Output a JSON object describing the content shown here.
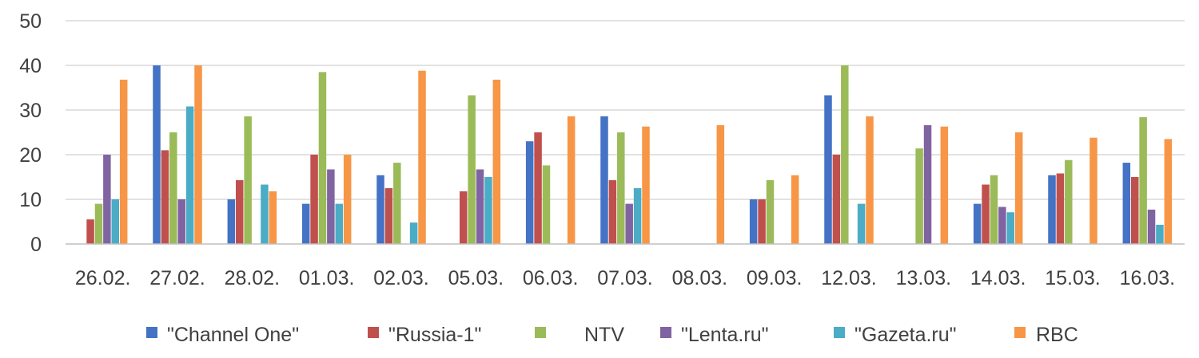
{
  "chart_data": {
    "type": "bar",
    "title": "",
    "xlabel": "",
    "ylabel": "",
    "ylim": [
      0,
      50
    ],
    "yticks": [
      0,
      10,
      20,
      30,
      40,
      50
    ],
    "grid": true,
    "legend_position": "bottom",
    "categories": [
      "26.02.",
      "27.02.",
      "28.02.",
      "01.03.",
      "02.03.",
      "05.03.",
      "06.03.",
      "07.03.",
      "08.03.",
      "09.03.",
      "12.03.",
      "13.03.",
      "14.03.",
      "15.03.",
      "16.03."
    ],
    "series": [
      {
        "name": "\"Channel One\"",
        "color": "#4472c4",
        "values": [
          0,
          40,
          10,
          9,
          15.4,
          0,
          23,
          28.6,
          0,
          10,
          33.3,
          0,
          9,
          15.4,
          18.2
        ]
      },
      {
        "name": "\"Russia-1\"",
        "color": "#c0504d",
        "values": [
          5.5,
          21,
          14.3,
          20,
          12.5,
          11.8,
          25,
          14.3,
          0,
          10,
          20,
          0,
          13.3,
          15.8,
          15
        ]
      },
      {
        "name": "NTV",
        "color": "#9bbb59",
        "values": [
          9,
          25,
          28.6,
          38.5,
          18.2,
          33.3,
          17.6,
          25,
          0,
          14.3,
          40,
          21.4,
          15.4,
          18.8,
          28.4
        ]
      },
      {
        "name": "\"Lenta.ru\"",
        "color": "#8064a2",
        "values": [
          20,
          10,
          0,
          16.7,
          0,
          16.7,
          0,
          9,
          0,
          0,
          0,
          26.6,
          8.3,
          0,
          7.7
        ]
      },
      {
        "name": "\"Gazeta.ru\"",
        "color": "#4bacc6",
        "values": [
          10,
          30.8,
          13.3,
          9,
          4.8,
          15,
          0,
          12.5,
          0,
          0,
          9,
          0,
          7.1,
          0,
          4.3
        ]
      },
      {
        "name": "RBC",
        "color": "#f79646",
        "values": [
          36.8,
          40,
          11.8,
          20,
          38.8,
          36.8,
          28.6,
          26.3,
          26.6,
          15.4,
          28.6,
          26.3,
          25,
          23.8,
          23.5
        ]
      }
    ]
  }
}
